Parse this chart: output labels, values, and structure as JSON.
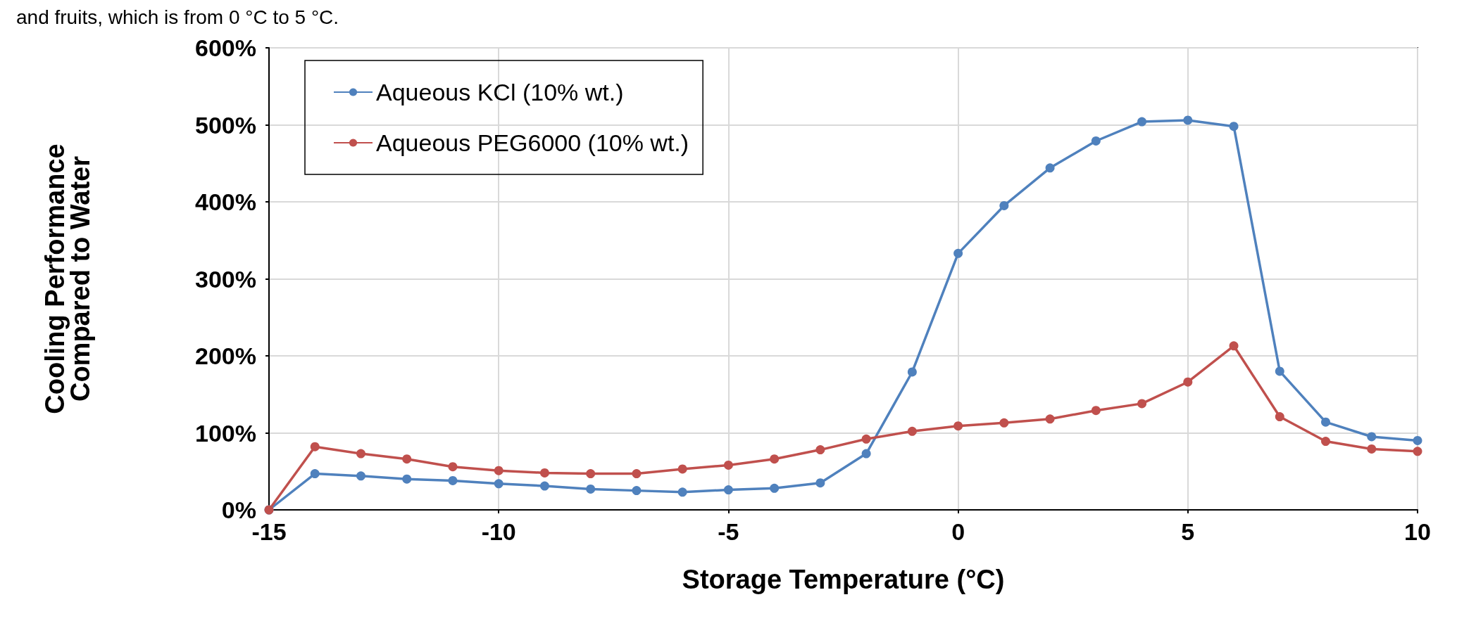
{
  "chart_data": {
    "type": "line",
    "xlabel": "Storage Temperature (°C)",
    "ylabel": "Cooling Performance\nCompared to Water",
    "annotations": [
      "and fruits, which is from 0 °C to 5 °C."
    ],
    "x": [
      -15,
      -14,
      -13,
      -12,
      -11,
      -10,
      -9,
      -8,
      -7,
      -6,
      -5,
      -4,
      -3,
      -2,
      -1,
      0,
      1,
      2,
      3,
      4,
      5,
      6,
      7,
      8,
      9,
      10
    ],
    "series": [
      {
        "name": "Aqueous KCl (10% wt.)",
        "color": "#4f81bd",
        "values": [
          0,
          47,
          44,
          40,
          38,
          34,
          31,
          27,
          25,
          23,
          26,
          28,
          35,
          73,
          179,
          333,
          395,
          444,
          479,
          504,
          506,
          498,
          180,
          114,
          95,
          90
        ]
      },
      {
        "name": "Aqueous PEG6000 (10% wt.)",
        "color": "#c0504d",
        "values": [
          0,
          82,
          73,
          66,
          56,
          51,
          48,
          47,
          47,
          53,
          58,
          66,
          78,
          92,
          102,
          109,
          113,
          118,
          129,
          138,
          166,
          213,
          121,
          89,
          79,
          76
        ]
      }
    ],
    "xlim": [
      -15,
      10
    ],
    "xticks": [
      -15,
      -10,
      -5,
      0,
      5,
      10
    ],
    "ylim": [
      0,
      600
    ],
    "yticks": [
      {
        "value": 0,
        "label": "0%"
      },
      {
        "value": 100,
        "label": "100%"
      },
      {
        "value": 200,
        "label": "200%"
      },
      {
        "value": 300,
        "label": "300%"
      },
      {
        "value": 400,
        "label": "400%"
      },
      {
        "value": 500,
        "label": "500%"
      },
      {
        "value": 600,
        "label": "600%"
      }
    ],
    "grid": true,
    "legend": "top left",
    "marker": "circle",
    "line_style": "solid"
  }
}
